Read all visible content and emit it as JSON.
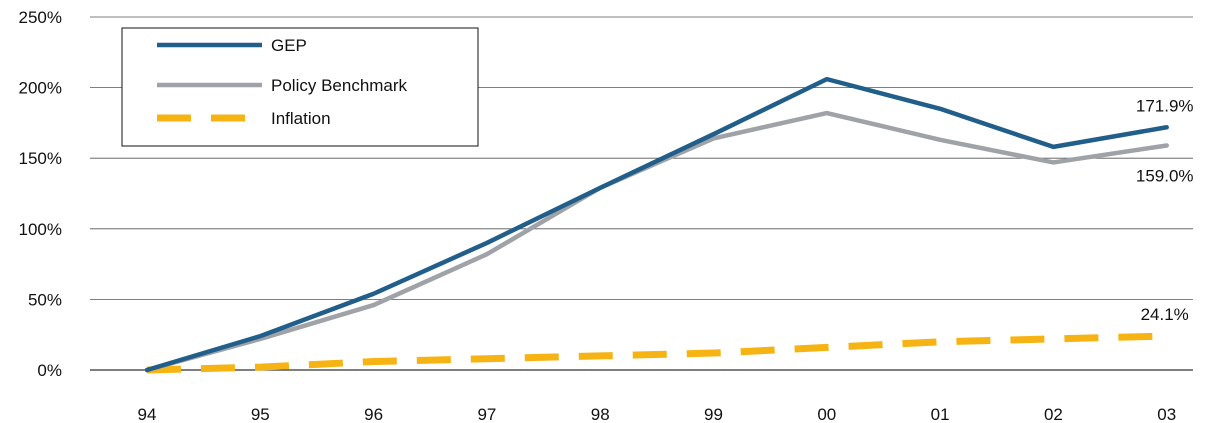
{
  "chart_data": {
    "type": "line",
    "title": "",
    "xlabel": "",
    "ylabel": "",
    "categories": [
      "94",
      "95",
      "96",
      "97",
      "98",
      "99",
      "00",
      "01",
      "02",
      "03"
    ],
    "y_ticks": [
      "0%",
      "50%",
      "100%",
      "150%",
      "200%",
      "250%"
    ],
    "ylim": [
      0,
      250
    ],
    "grid": "horizontal",
    "legend_position": "top-left",
    "series": [
      {
        "name": "GEP",
        "color": "#215f8a",
        "style": "solid",
        "values": [
          0,
          24,
          54,
          90,
          129,
          167,
          206,
          185,
          158,
          171.9
        ]
      },
      {
        "name": "Policy Benchmark",
        "color": "#9fa3a8",
        "style": "solid",
        "values": [
          0,
          22,
          46,
          82,
          129,
          164,
          182,
          163,
          147,
          159.0
        ]
      },
      {
        "name": "Inflation",
        "color": "#f5b414",
        "style": "dashed",
        "values": [
          0,
          2,
          6,
          8,
          10,
          12,
          16,
          20,
          22,
          24.1
        ]
      }
    ],
    "annotations": [
      {
        "series": "GEP",
        "index": 9,
        "text": "171.9%",
        "place": "above"
      },
      {
        "series": "Policy Benchmark",
        "index": 9,
        "text": "159.0%",
        "place": "below"
      },
      {
        "series": "Inflation",
        "index": 9,
        "text": "24.1%",
        "place": "above"
      }
    ]
  }
}
